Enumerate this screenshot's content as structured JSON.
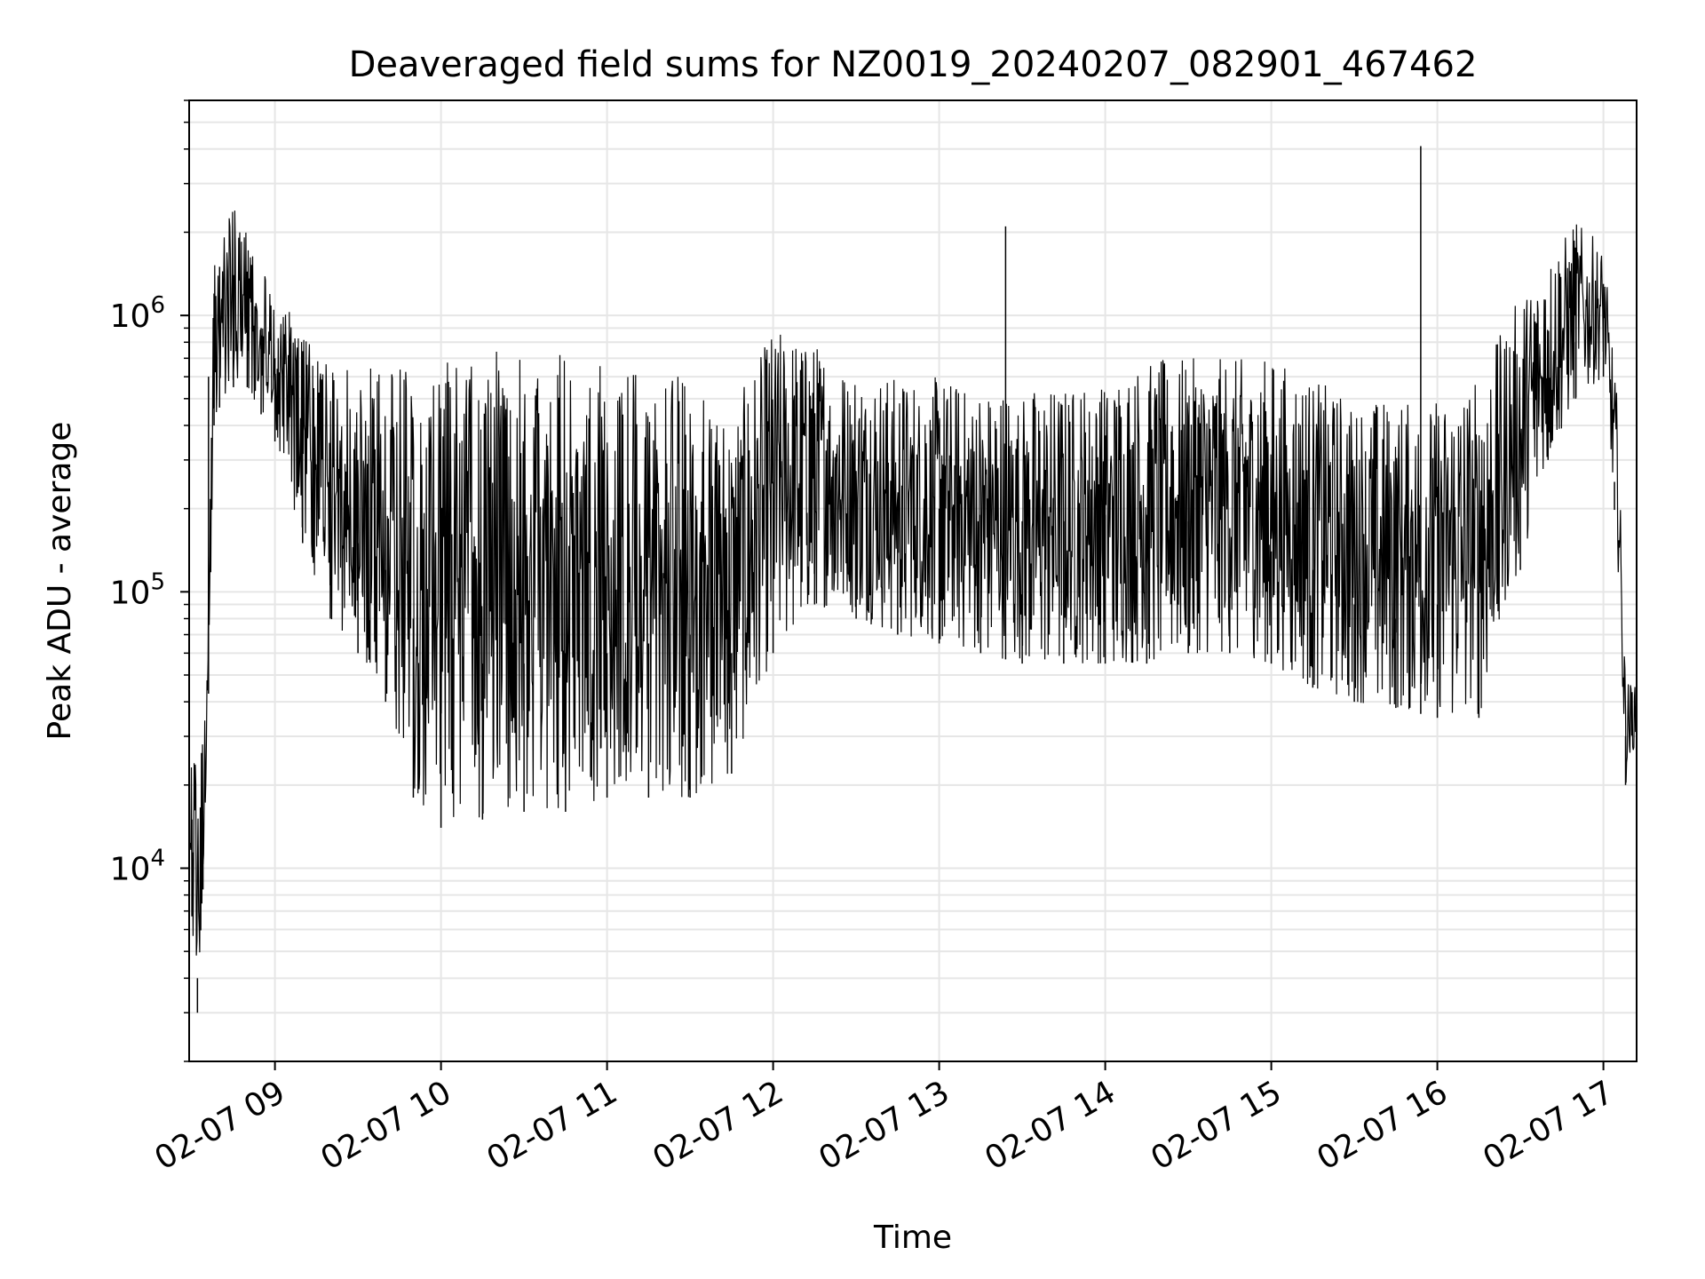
{
  "chart_data": {
    "type": "line",
    "title": "Deaveraged field sums for NZ0019_20240207_082901_467462",
    "xlabel": "Time",
    "ylabel": "Peak ADU - average",
    "y_scale": "log",
    "ylim": [
      2000,
      6000000
    ],
    "xlim": [
      "2024-02-07 08:29",
      "2024-02-07 17:12"
    ],
    "x_ticks": [
      {
        "t": "2024-02-07 09:00",
        "label": "02-07 09"
      },
      {
        "t": "2024-02-07 10:00",
        "label": "02-07 10"
      },
      {
        "t": "2024-02-07 11:00",
        "label": "02-07 11"
      },
      {
        "t": "2024-02-07 12:00",
        "label": "02-07 12"
      },
      {
        "t": "2024-02-07 13:00",
        "label": "02-07 13"
      },
      {
        "t": "2024-02-07 14:00",
        "label": "02-07 14"
      },
      {
        "t": "2024-02-07 15:00",
        "label": "02-07 15"
      },
      {
        "t": "2024-02-07 16:00",
        "label": "02-07 16"
      },
      {
        "t": "2024-02-07 17:00",
        "label": "02-07 17"
      }
    ],
    "y_ticks": [
      {
        "value": 10000,
        "base": "10",
        "exp": "4"
      },
      {
        "value": 100000,
        "base": "10",
        "exp": "5"
      },
      {
        "value": 1000000,
        "base": "10",
        "exp": "6"
      }
    ],
    "grid": true,
    "line_color": "#000000",
    "series": [
      {
        "name": "",
        "x": [
          "2024-02-07 08:30",
          "2024-02-07 08:32",
          "2024-02-07 08:34",
          "2024-02-07 08:36",
          "2024-02-07 08:38",
          "2024-02-07 08:40",
          "2024-02-07 08:45",
          "2024-02-07 08:50",
          "2024-02-07 08:55",
          "2024-02-07 09:00",
          "2024-02-07 09:10",
          "2024-02-07 09:20",
          "2024-02-07 09:30",
          "2024-02-07 09:40",
          "2024-02-07 09:50",
          "2024-02-07 10:00",
          "2024-02-07 10:15",
          "2024-02-07 10:30",
          "2024-02-07 10:45",
          "2024-02-07 11:00",
          "2024-02-07 11:15",
          "2024-02-07 11:30",
          "2024-02-07 11:45",
          "2024-02-07 12:00",
          "2024-02-07 12:15",
          "2024-02-07 12:30",
          "2024-02-07 12:45",
          "2024-02-07 13:00",
          "2024-02-07 13:15",
          "2024-02-07 13:24",
          "2024-02-07 13:30",
          "2024-02-07 13:45",
          "2024-02-07 14:00",
          "2024-02-07 14:15",
          "2024-02-07 14:30",
          "2024-02-07 14:45",
          "2024-02-07 15:00",
          "2024-02-07 15:15",
          "2024-02-07 15:30",
          "2024-02-07 15:45",
          "2024-02-07 15:54",
          "2024-02-07 16:00",
          "2024-02-07 16:15",
          "2024-02-07 16:30",
          "2024-02-07 16:40",
          "2024-02-07 16:50",
          "2024-02-07 17:00",
          "2024-02-07 17:04",
          "2024-02-07 17:08",
          "2024-02-07 17:12"
        ],
        "y": [
          15000,
          4000,
          14000,
          600000,
          1200000,
          1500000,
          1400000,
          1100000,
          900000,
          700000,
          500000,
          200000,
          150000,
          120000,
          80000,
          60000,
          55000,
          55000,
          60000,
          60000,
          65000,
          70000,
          60000,
          250000,
          250000,
          220000,
          200000,
          200000,
          190000,
          2100000,
          180000,
          180000,
          190000,
          190000,
          180000,
          170000,
          140000,
          120000,
          90000,
          80000,
          4100000,
          90000,
          100000,
          300000,
          500000,
          800000,
          1300000,
          250000,
          30000,
          40000
        ]
      }
    ],
    "envelope": {
      "x": [
        "2024-02-07 08:29",
        "2024-02-07 08:32",
        "2024-02-07 08:35",
        "2024-02-07 08:38",
        "2024-02-07 08:41",
        "2024-02-07 08:45",
        "2024-02-07 08:50",
        "2024-02-07 09:00",
        "2024-02-07 09:10",
        "2024-02-07 09:20",
        "2024-02-07 09:30",
        "2024-02-07 09:40",
        "2024-02-07 09:50",
        "2024-02-07 10:00",
        "2024-02-07 10:15",
        "2024-02-07 10:30",
        "2024-02-07 10:45",
        "2024-02-07 11:00",
        "2024-02-07 11:15",
        "2024-02-07 11:30",
        "2024-02-07 11:45",
        "2024-02-07 12:00",
        "2024-02-07 12:15",
        "2024-02-07 12:30",
        "2024-02-07 12:45",
        "2024-02-07 13:00",
        "2024-02-07 13:15",
        "2024-02-07 13:30",
        "2024-02-07 13:45",
        "2024-02-07 14:00",
        "2024-02-07 14:15",
        "2024-02-07 14:30",
        "2024-02-07 14:45",
        "2024-02-07 15:00",
        "2024-02-07 15:15",
        "2024-02-07 15:30",
        "2024-02-07 15:45",
        "2024-02-07 16:00",
        "2024-02-07 16:15",
        "2024-02-07 16:30",
        "2024-02-07 16:40",
        "2024-02-07 16:50",
        "2024-02-07 17:00",
        "2024-02-07 17:05",
        "2024-02-07 17:08",
        "2024-02-07 17:12"
      ],
      "low": [
        10000,
        3000,
        14000,
        400000,
        500000,
        550000,
        550000,
        350000,
        150000,
        80000,
        60000,
        40000,
        18000,
        14000,
        15000,
        16000,
        16000,
        18000,
        18000,
        18000,
        22000,
        60000,
        90000,
        80000,
        70000,
        65000,
        60000,
        55000,
        55000,
        55000,
        55000,
        60000,
        60000,
        55000,
        45000,
        40000,
        38000,
        35000,
        35000,
        120000,
        300000,
        500000,
        600000,
        150000,
        20000,
        30000
      ],
      "high": [
        25000,
        25000,
        40000,
        1500000,
        2200000,
        2500000,
        2000000,
        1200000,
        900000,
        700000,
        600000,
        700000,
        600000,
        700000,
        750000,
        750000,
        750000,
        750000,
        600000,
        600000,
        450000,
        900000,
        800000,
        650000,
        600000,
        600000,
        550000,
        550000,
        550000,
        600000,
        700000,
        700000,
        700000,
        700000,
        600000,
        500000,
        500000,
        500000,
        600000,
        1200000,
        1600000,
        2200000,
        1800000,
        500000,
        50000,
        45000
      ]
    }
  }
}
